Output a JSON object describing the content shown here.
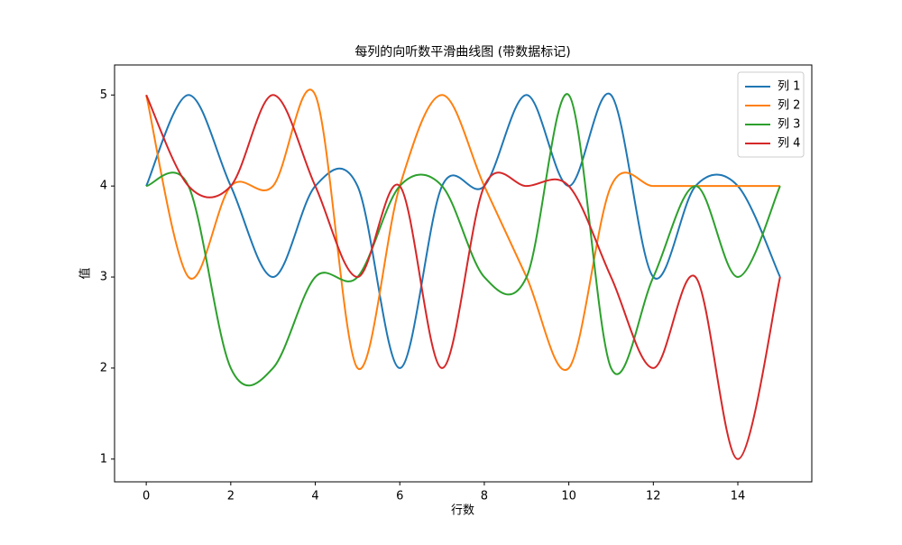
{
  "chart_data": {
    "type": "line",
    "title": "每列的向听数平滑曲线图 (带数据标记)",
    "x_label": "行数",
    "y_label": "值",
    "x": [
      0,
      1,
      2,
      3,
      4,
      5,
      6,
      7,
      8,
      9,
      10,
      11,
      12,
      13,
      14,
      15
    ],
    "series": [
      {
        "name": "列 1",
        "color": "#1f77b4",
        "values": [
          4,
          5,
          4,
          3,
          4,
          4,
          2,
          4,
          4,
          5,
          4,
          5,
          3,
          4,
          4,
          3
        ]
      },
      {
        "name": "列 2",
        "color": "#ff7f0e",
        "values": [
          5,
          3,
          4,
          4,
          5,
          2,
          4,
          5,
          4,
          3,
          2,
          4,
          4,
          4,
          4,
          4
        ]
      },
      {
        "name": "列 3",
        "color": "#2ca02c",
        "values": [
          4,
          4,
          2,
          2,
          3,
          3,
          4,
          4,
          3,
          3,
          5,
          2,
          3,
          4,
          3,
          4
        ]
      },
      {
        "name": "列 4",
        "color": "#d62728",
        "values": [
          5,
          4,
          4,
          5,
          4,
          3,
          4,
          2,
          4,
          4,
          4,
          3,
          2,
          3,
          1,
          3
        ]
      }
    ],
    "xlim": [
      -0.75,
      15.75
    ],
    "ylim": [
      0.75,
      5.33
    ],
    "xticks": [
      0,
      2,
      4,
      6,
      8,
      10,
      12,
      14
    ],
    "yticks": [
      1,
      2,
      3,
      4,
      5
    ],
    "legend": "upper right"
  }
}
